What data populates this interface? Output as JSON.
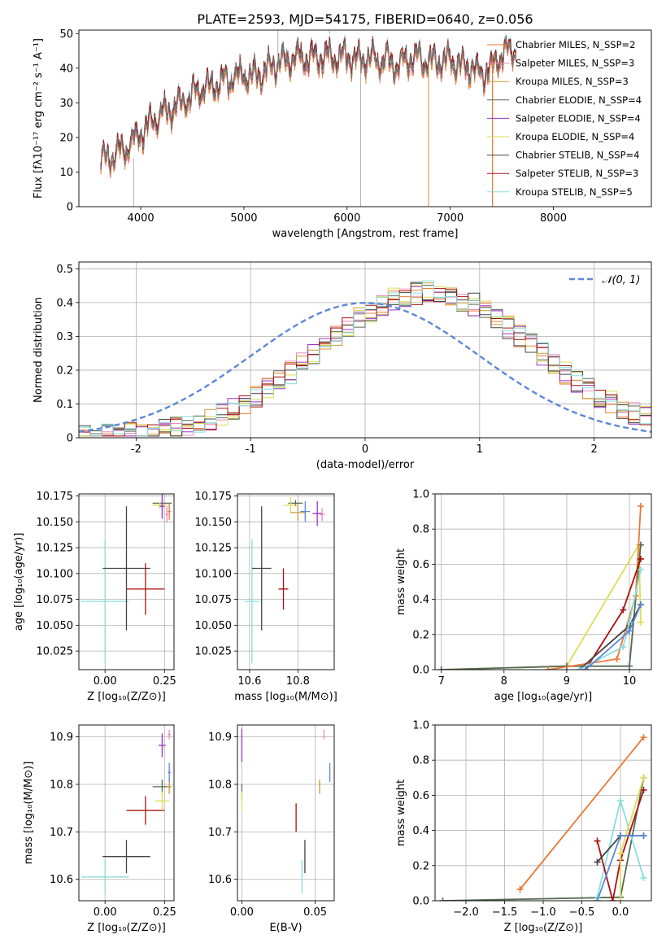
{
  "figure": {
    "title": "PLATE=2593, MJD=54175, FIBERID=0640, z=0.056"
  },
  "chart_data": [
    {
      "id": "spectrum",
      "type": "line",
      "xlabel": "wavelength [Angstrom, rest frame]",
      "ylabel": "Flux [fλ10⁻¹⁷ erg cm⁻² s⁻¹ A⁻¹]",
      "xlim": [
        3400,
        8950
      ],
      "ylim": [
        0,
        51
      ],
      "xticks": [
        4000,
        5000,
        6000,
        7000,
        8000
      ],
      "yticks": [
        0,
        10,
        20,
        30,
        40,
        50
      ],
      "legend": "top-right",
      "series": [
        {
          "name": "Chabrier MILES, N_SSP=2",
          "color": "#ee7733"
        },
        {
          "name": "Salpeter MILES, N_SSP=3",
          "color": "#ee88bb"
        },
        {
          "name": "Kroupa MILES, N_SSP=3",
          "color": "#cc9933"
        },
        {
          "name": "Chabrier ELODIE, N_SSP=4",
          "color": "#556b55"
        },
        {
          "name": "Salpeter ELODIE, N_SSP=4",
          "color": "#9933cc"
        },
        {
          "name": "Kroupa ELODIE, N_SSP=4",
          "color": "#dddd55"
        },
        {
          "name": "Chabrier STELIB, N_SSP=4",
          "color": "#444444"
        },
        {
          "name": "Salpeter STELIB, N_SSP=3",
          "color": "#aa1111"
        },
        {
          "name": "Kroupa STELIB, N_SSP=5",
          "color": "#88dddd"
        }
      ],
      "data_color": "#777777",
      "continuum": {
        "x": [
          3600,
          3700,
          3800,
          3900,
          4000,
          4100,
          4200,
          4300,
          4400,
          4500,
          4600,
          4700,
          4800,
          4900,
          5000,
          5100,
          5200,
          5300,
          5400,
          5500,
          5600,
          5700,
          5800,
          5900,
          6000,
          6100,
          6200,
          6300,
          6400,
          6500,
          6600,
          6700,
          6800,
          6900,
          7000,
          7100,
          7200,
          7300,
          7400,
          7500,
          7600
        ],
        "y": [
          13,
          14,
          16,
          18,
          21,
          24,
          27,
          28,
          30,
          32,
          34,
          35,
          36,
          37,
          38,
          38,
          39,
          41,
          42,
          43,
          43,
          43,
          43,
          43,
          43,
          42,
          43,
          42,
          42,
          41,
          43,
          43,
          42,
          42,
          42,
          41,
          40,
          38,
          40,
          44,
          45
        ]
      }
    },
    {
      "id": "residuals",
      "type": "bar",
      "xlabel": "(data-model)/error",
      "ylabel": "Normed distribution",
      "xlim": [
        -2.5,
        2.5
      ],
      "ylim": [
        0,
        0.52
      ],
      "xticks": [
        -2,
        -1,
        0,
        1,
        2
      ],
      "yticks": [
        0.0,
        0.1,
        0.2,
        0.3,
        0.4,
        0.5
      ],
      "bin_width": 0.1,
      "legend": "top-right",
      "reference": {
        "name": "𝒩(0, 1)",
        "color": "#5b88d8",
        "mean": 0,
        "std": 1
      }
    },
    {
      "id": "age_vs_Z",
      "type": "scatter",
      "xlabel": "Z [log₁₀(Z/Z⊙)]",
      "ylabel": "age  [log₁₀(age/yr)]",
      "xlim": [
        -0.11,
        0.29
      ],
      "ylim": [
        10.007,
        10.177
      ],
      "xticks": [
        "0.00",
        "0.25"
      ],
      "yticks": [
        "10.025",
        "10.050",
        "10.075",
        "10.100",
        "10.125",
        "10.150",
        "10.175"
      ],
      "points": [
        {
          "x": 0.0,
          "y": 10.073,
          "xerr": 0.1,
          "yerr": 0.06,
          "color": "#88dddd"
        },
        {
          "x": 0.09,
          "y": 10.105,
          "xerr": 0.1,
          "yerr": 0.06,
          "color": "#444444"
        },
        {
          "x": 0.17,
          "y": 10.085,
          "xerr": 0.08,
          "yerr": 0.025,
          "color": "#aa1111"
        },
        {
          "x": 0.24,
          "y": 10.168,
          "xerr": 0.04,
          "yerr": 0.003,
          "color": "#556b55"
        },
        {
          "x": 0.23,
          "y": 10.166,
          "xerr": 0.03,
          "yerr": 0.003,
          "color": "#dddd55"
        },
        {
          "x": 0.24,
          "y": 10.165,
          "xerr": 0.01,
          "yerr": 0.012,
          "color": "#9933cc"
        },
        {
          "x": 0.27,
          "y": 10.16,
          "xerr": 0.006,
          "yerr": 0.008,
          "color": "#ee7733"
        },
        {
          "x": 0.26,
          "y": 10.157,
          "xerr": 0.006,
          "yerr": 0.008,
          "color": "#ee88bb"
        }
      ]
    },
    {
      "id": "age_vs_mass",
      "type": "scatter",
      "xlabel": "mass [log₁₀(M/M⊙)]",
      "ylabel": "",
      "xlim": [
        10.55,
        10.95
      ],
      "ylim": [
        10.007,
        10.177
      ],
      "xticks": [
        "10.6",
        "10.8"
      ],
      "yticks": [
        "10.025",
        "10.050",
        "10.075",
        "10.100",
        "10.125",
        "10.150",
        "10.175"
      ],
      "points": [
        {
          "x": 10.61,
          "y": 10.073,
          "xerr": 0.03,
          "yerr": 0.06,
          "color": "#88dddd"
        },
        {
          "x": 10.65,
          "y": 10.105,
          "xerr": 0.04,
          "yerr": 0.06,
          "color": "#444444"
        },
        {
          "x": 10.74,
          "y": 10.085,
          "xerr": 0.02,
          "yerr": 0.02,
          "color": "#aa1111"
        },
        {
          "x": 10.79,
          "y": 10.168,
          "xerr": 0.03,
          "yerr": 0.003,
          "color": "#556b55"
        },
        {
          "x": 10.77,
          "y": 10.166,
          "xerr": 0.03,
          "yerr": 0.008,
          "color": "#dddd55"
        },
        {
          "x": 10.8,
          "y": 10.159,
          "xerr": 0.03,
          "yerr": 0.008,
          "color": "#cc9933"
        },
        {
          "x": 10.83,
          "y": 10.16,
          "xerr": 0.02,
          "yerr": 0.01,
          "color": "#5b88d8"
        },
        {
          "x": 10.88,
          "y": 10.158,
          "xerr": 0.02,
          "yerr": 0.012,
          "color": "#9933cc"
        },
        {
          "x": 10.9,
          "y": 10.157,
          "xerr": 0.01,
          "yerr": 0.006,
          "color": "#ee88bb"
        }
      ]
    },
    {
      "id": "mass_weight_vs_age",
      "type": "line",
      "xlabel": "age  [log₁₀(age/yr)]",
      "ylabel": "mass weight",
      "xlim": [
        6.9,
        10.35
      ],
      "ylim": [
        0,
        1
      ],
      "xticks": [
        7,
        8,
        9,
        10
      ],
      "yticks": [
        "0.0",
        "0.2",
        "0.4",
        "0.6",
        "0.8",
        "1.0"
      ],
      "series": [
        {
          "color": "#dddd55",
          "x": [
            7.0,
            9.0,
            10.15,
            10.18
          ],
          "y": [
            0.0,
            0.02,
            0.71,
            0.27
          ]
        },
        {
          "color": "#556b55",
          "x": [
            7.0,
            9.0,
            10.0,
            10.18
          ],
          "y": [
            0.0,
            0.02,
            0.02,
            0.71
          ]
        },
        {
          "color": "#ee7733",
          "x": [
            8.7,
            9.8,
            10.1,
            10.18
          ],
          "y": [
            0.0,
            0.06,
            0.42,
            0.93
          ]
        },
        {
          "color": "#aa1111",
          "x": [
            9.3,
            9.9,
            10.18
          ],
          "y": [
            0.0,
            0.34,
            0.63
          ]
        },
        {
          "color": "#444444",
          "x": [
            9.2,
            10.0,
            10.18
          ],
          "y": [
            0.0,
            0.25,
            0.37
          ]
        },
        {
          "color": "#88dddd",
          "x": [
            9.2,
            9.9,
            10.0,
            10.18
          ],
          "y": [
            0.0,
            0.13,
            0.27,
            0.57
          ]
        },
        {
          "color": "#5b88d8",
          "x": [
            9.3,
            10.0,
            10.18
          ],
          "y": [
            0.0,
            0.22,
            0.37
          ]
        }
      ]
    },
    {
      "id": "mass_vs_Z",
      "type": "scatter",
      "xlabel": "Z [log₁₀(Z/Z⊙)]",
      "ylabel": "mass [log₁₀(M/M⊙)]",
      "xlim": [
        -0.11,
        0.29
      ],
      "ylim": [
        10.555,
        10.925
      ],
      "xticks": [
        "0.00",
        "0.25"
      ],
      "yticks": [
        "10.6",
        "10.7",
        "10.8",
        "10.9"
      ],
      "points": [
        {
          "x": 0.0,
          "y": 10.605,
          "xerr": 0.1,
          "yerr": 0.035,
          "color": "#88dddd"
        },
        {
          "x": 0.09,
          "y": 10.648,
          "xerr": 0.1,
          "yerr": 0.035,
          "color": "#444444"
        },
        {
          "x": 0.17,
          "y": 10.745,
          "xerr": 0.08,
          "yerr": 0.03,
          "color": "#aa1111"
        },
        {
          "x": 0.24,
          "y": 10.795,
          "xerr": 0.04,
          "yerr": 0.015,
          "color": "#556b55"
        },
        {
          "x": 0.24,
          "y": 10.765,
          "xerr": 0.03,
          "yerr": 0.02,
          "color": "#dddd55"
        },
        {
          "x": 0.27,
          "y": 10.795,
          "xerr": 0.01,
          "yerr": 0.015,
          "color": "#cc9933"
        },
        {
          "x": 0.27,
          "y": 10.825,
          "xerr": 0.006,
          "yerr": 0.02,
          "color": "#5b88d8"
        },
        {
          "x": 0.24,
          "y": 10.882,
          "xerr": 0.015,
          "yerr": 0.025,
          "color": "#9933cc"
        },
        {
          "x": 0.27,
          "y": 10.905,
          "xerr": 0.006,
          "yerr": 0.01,
          "color": "#ee88bb"
        }
      ]
    },
    {
      "id": "mass_vs_ebv",
      "type": "scatter",
      "xlabel": "E(B-V)",
      "ylabel": "",
      "xlim": [
        -0.003,
        0.063
      ],
      "ylim": [
        10.555,
        10.925
      ],
      "xticks": [
        "0.00",
        "0.05"
      ],
      "yticks": [
        "10.6",
        "10.7",
        "10.8",
        "10.9"
      ],
      "points": [
        {
          "x": 0.041,
          "y": 10.605,
          "xerr": 0.0,
          "yerr": 0.035,
          "color": "#88dddd"
        },
        {
          "x": 0.043,
          "y": 10.648,
          "xerr": 0.0,
          "yerr": 0.035,
          "color": "#444444"
        },
        {
          "x": 0.037,
          "y": 10.73,
          "xerr": 0.0,
          "yerr": 0.03,
          "color": "#aa1111"
        },
        {
          "x": 0.0,
          "y": 10.785,
          "xerr": 0.0,
          "yerr": 0.015,
          "color": "#556b55"
        },
        {
          "x": 0.0,
          "y": 10.765,
          "xerr": 0.0,
          "yerr": 0.02,
          "color": "#dddd55"
        },
        {
          "x": 0.053,
          "y": 10.795,
          "xerr": 0.0,
          "yerr": 0.015,
          "color": "#cc9933"
        },
        {
          "x": 0.06,
          "y": 10.825,
          "xerr": 0.0,
          "yerr": 0.02,
          "color": "#5b88d8"
        },
        {
          "x": 0.0,
          "y": 10.882,
          "xerr": 0.0,
          "yerr": 0.035,
          "color": "#9933cc"
        },
        {
          "x": 0.056,
          "y": 10.905,
          "xerr": 0.0,
          "yerr": 0.01,
          "color": "#ee88bb"
        }
      ]
    },
    {
      "id": "mass_weight_vs_Z",
      "type": "line",
      "xlabel": "Z [log₁₀(Z/Z⊙)]",
      "ylabel": "mass weight",
      "xlim": [
        -2.4,
        0.4
      ],
      "ylim": [
        0,
        1
      ],
      "xticks": [
        "−2.0",
        "−1.5",
        "−1.0",
        "−0.5",
        "0.0"
      ],
      "xtick_values": [
        -2.0,
        -1.5,
        -1.0,
        -0.5,
        0.0
      ],
      "yticks": [
        "0.0",
        "0.2",
        "0.4",
        "0.6",
        "0.8",
        "1.0"
      ],
      "series": [
        {
          "color": "#ee7733",
          "x": [
            -1.3,
            0.3
          ],
          "y": [
            0.065,
            0.93
          ]
        },
        {
          "color": "#556b55",
          "x": [
            -2.3,
            0.0,
            0.3
          ],
          "y": [
            0.0,
            0.02,
            0.7
          ]
        },
        {
          "color": "#88dddd",
          "x": [
            -0.3,
            0.0,
            0.3
          ],
          "y": [
            0.02,
            0.57,
            0.13
          ]
        },
        {
          "color": "#aa1111",
          "x": [
            -0.3,
            -0.1,
            0.0,
            0.3
          ],
          "y": [
            0.34,
            0.0,
            0.23,
            0.63
          ]
        },
        {
          "color": "#444444",
          "x": [
            -0.3,
            0.0,
            0.3
          ],
          "y": [
            0.22,
            0.37,
            0.37
          ]
        },
        {
          "color": "#dddd55",
          "x": [
            0.0,
            0.0,
            0.3
          ],
          "y": [
            0.0,
            0.27,
            0.7
          ]
        },
        {
          "color": "#5b88d8",
          "x": [
            -0.3,
            0.0,
            0.3
          ],
          "y": [
            0.0,
            0.37,
            0.37
          ]
        }
      ]
    }
  ]
}
